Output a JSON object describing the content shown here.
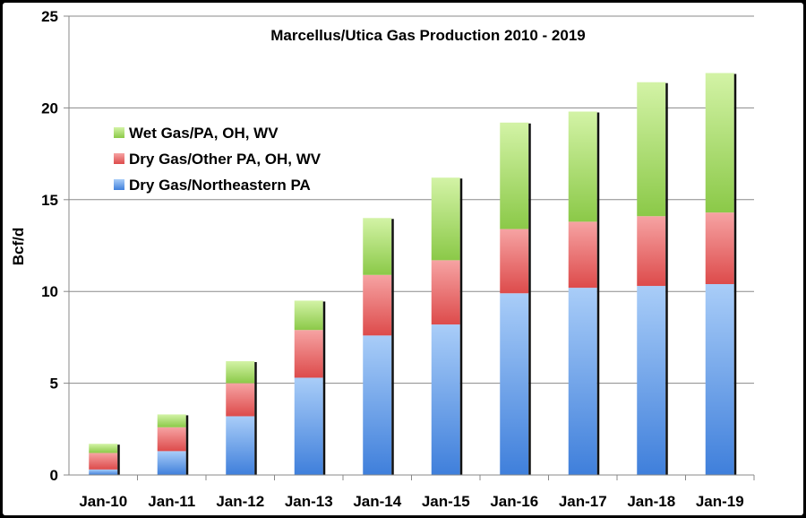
{
  "chart_data": {
    "type": "bar",
    "stacked": true,
    "title": "Marcellus/Utica Gas Production 2010 - 2019",
    "xlabel": "",
    "ylabel": "Bcf/d",
    "ylim": [
      0,
      25
    ],
    "yticks": [
      "0",
      "5",
      "10",
      "15",
      "20",
      "25"
    ],
    "grid": true,
    "legend_position": "top-left",
    "categories": [
      "Jan-10",
      "Jan-11",
      "Jan-12",
      "Jan-13",
      "Jan-14",
      "Jan-15",
      "Jan-16",
      "Jan-17",
      "Jan-18",
      "Jan-19"
    ],
    "series": [
      {
        "name": "Dry Gas/Northeastern PA",
        "color": "#6fa3ec",
        "values": [
          0.3,
          1.3,
          3.2,
          5.3,
          7.6,
          8.2,
          9.9,
          10.2,
          10.3,
          10.4
        ]
      },
      {
        "name": "Dry Gas/Other PA, OH, WV",
        "color": "#ec6b6b",
        "values": [
          0.9,
          1.3,
          1.8,
          2.6,
          3.3,
          3.5,
          3.5,
          3.6,
          3.8,
          3.9
        ]
      },
      {
        "name": "Wet Gas/PA, OH, WV",
        "color": "#a6dc68",
        "values": [
          0.5,
          0.7,
          1.2,
          1.6,
          3.1,
          4.5,
          5.8,
          6.0,
          7.3,
          7.6
        ]
      }
    ],
    "legend_order": [
      "Wet Gas/PA, OH, WV",
      "Dry Gas/Other PA, OH, WV",
      "Dry Gas/Northeastern PA"
    ]
  }
}
